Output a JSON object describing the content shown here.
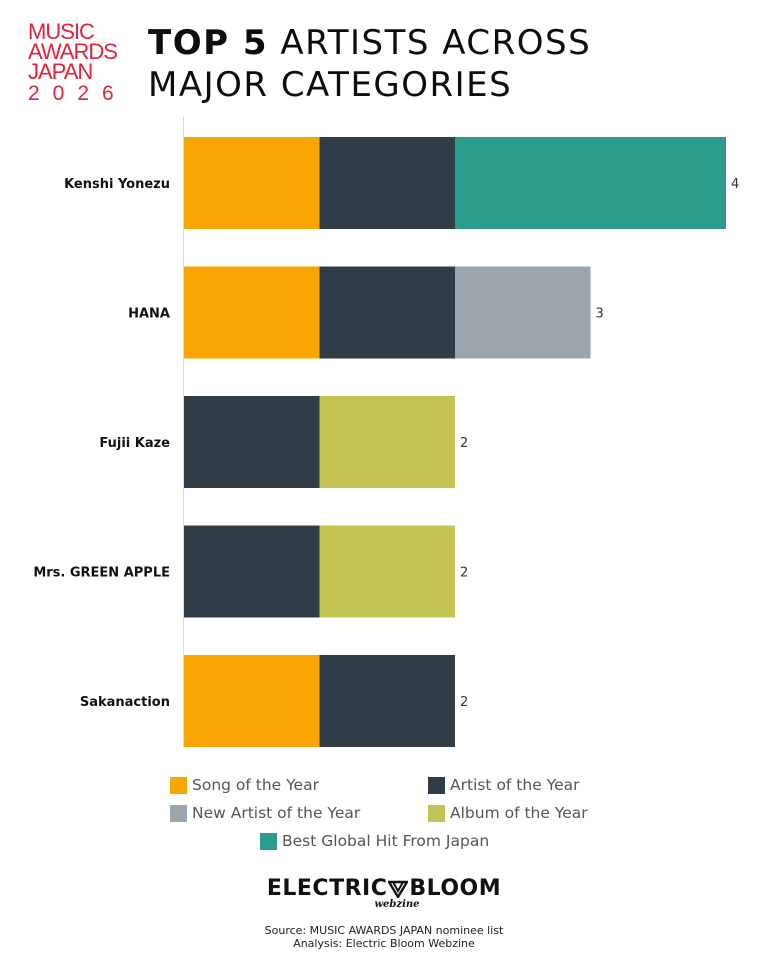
{
  "logo": {
    "line1": "MUSIC",
    "line2": "AWARDS",
    "line3": "JAPAN",
    "year": "2026",
    "color": "#e0243c"
  },
  "title": {
    "bold_part": "TOP 5",
    "rest_line1": " ARTISTS ACROSS",
    "line2": "MAJOR CATEGORIES"
  },
  "chart_data": {
    "type": "bar",
    "orientation": "horizontal",
    "stacked": true,
    "title": "TOP 5 ARTISTS ACROSS MAJOR CATEGORIES",
    "categories": [
      "Kenshi Yonezu",
      "HANA",
      "Fujii Kaze",
      "Mrs. GREEN APPLE",
      "Sakanaction"
    ],
    "series": [
      {
        "name": "Song of the Year",
        "color": "#f9a602",
        "values": [
          1,
          1,
          0,
          0,
          1
        ]
      },
      {
        "name": "Artist of the Year",
        "color": "#313d46",
        "values": [
          1,
          1,
          1,
          1,
          1
        ]
      },
      {
        "name": "New Artist of the Year",
        "color": "#9ba5ae",
        "values": [
          0,
          1,
          0,
          0,
          0
        ]
      },
      {
        "name": "Album of the Year",
        "color": "#c4c452",
        "values": [
          0,
          0,
          1,
          1,
          0
        ]
      },
      {
        "name": "Best Global Hit From Japan",
        "color": "#2a9d8c",
        "values": [
          2,
          0,
          0,
          0,
          0
        ]
      }
    ],
    "totals": [
      "4",
      "3",
      "2",
      "2",
      "2"
    ],
    "xlim": [
      0,
      4
    ],
    "grid": false,
    "legend_position": "bottom"
  },
  "brand": {
    "left": "ELECTRIC",
    "right": "BLOOM",
    "sub": "webzine"
  },
  "source": {
    "line1": "Source: MUSIC AWARDS JAPAN nominee list",
    "line2": "Analysis: Electric Bloom Webzine"
  }
}
